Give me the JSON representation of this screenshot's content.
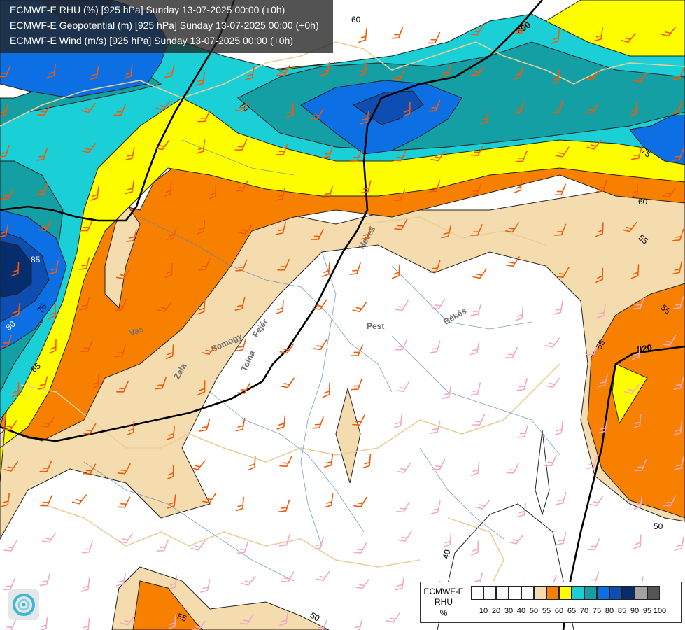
{
  "header": {
    "line1": "ECMWF-E RHU (%) [925 hPa] Sunday 13-07-2025 00:00 (+0h)",
    "line2": "ECMWF-E Geopotential (m) [925 hPa] Sunday 13-07-2025 00:00 (+0h)",
    "line3": "ECMWF-E Wind (m/s) [925 hPa] Sunday 13-07-2025 00:00 (+0h)"
  },
  "legend": {
    "title1": "ECMWF-E",
    "title2": "RHU",
    "unit": "%",
    "classes": [
      {
        "color": "#ffffff"
      },
      {
        "color": "#ffffff"
      },
      {
        "color": "#ffffff"
      },
      {
        "color": "#ffffff"
      },
      {
        "color": "#ffffff"
      },
      {
        "color": "#f5dcae"
      },
      {
        "color": "#f88000"
      },
      {
        "color": "#fffe00"
      },
      {
        "color": "#1acfd6"
      },
      {
        "color": "#139fa3"
      },
      {
        "color": "#0d6fe4"
      },
      {
        "color": "#0e4eb3"
      },
      {
        "color": "#062e6e"
      },
      {
        "color": "#a3a3a3"
      },
      {
        "color": "#555555"
      }
    ],
    "ticks": [
      "10",
      "20",
      "30",
      "40",
      "50",
      "55",
      "60",
      "65",
      "70",
      "75",
      "80",
      "85",
      "90",
      "95",
      "100"
    ]
  },
  "contour_labels": {
    "geopotential": [
      "800",
      "820"
    ],
    "rhu": [
      "60",
      "60",
      "55",
      "55",
      "55",
      "50",
      "50",
      "40",
      "70",
      "75",
      "75",
      "80",
      "85",
      "65",
      "55"
    ]
  },
  "place_names": [
    "Heves",
    "Pest",
    "Békés",
    "Tolna",
    "Somogy",
    "Fejér",
    "Vas",
    "Zala"
  ],
  "colors": {
    "white_class": "#ffffff",
    "tan_55": "#f5dcae",
    "orange_60": "#f88000",
    "yellow_65": "#fffe00",
    "cyan_70": "#1acfd6",
    "teal_75": "#139fa3",
    "blue_80": "#0d6fe4",
    "blue_85": "#0e4eb3",
    "navy_90": "#062e6e",
    "header_bg": "#232323",
    "wind_barb_orange": "#f25a0a",
    "wind_barb_pink": "#f3a8c0"
  }
}
